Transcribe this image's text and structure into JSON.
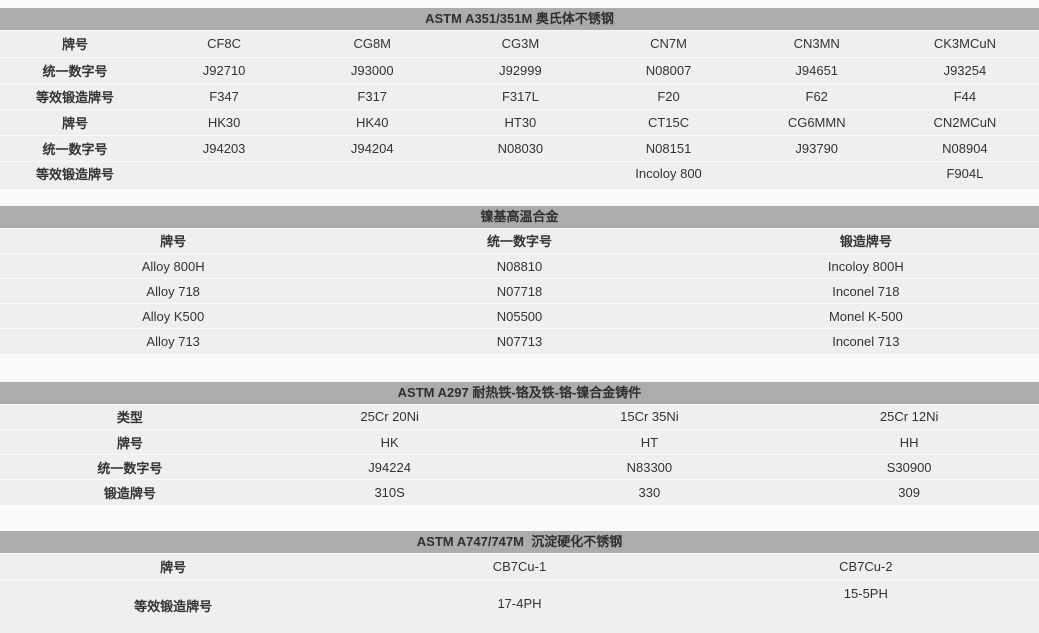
{
  "page": {
    "background_color": "#fafafa",
    "band_color": "#acacac",
    "body_color": "#efefef",
    "text_color": "#333333"
  },
  "tables": [
    {
      "title": "ASTM A351/351M 奥氏体不锈钢",
      "rows": [
        {
          "cells": [
            "牌号",
            "CF8C",
            "CG8M",
            "CG3M",
            "CN7M",
            "CN3MN",
            "CK3MCuN"
          ]
        },
        {
          "cells": [
            "统一数字号",
            "J92710",
            "J93000",
            "J92999",
            "N08007",
            "J94651",
            "J93254"
          ]
        },
        {
          "cells": [
            "等效锻造牌号",
            "F347",
            "F317",
            "F317L",
            "F20",
            "F62",
            "F44"
          ]
        },
        {
          "cells": [
            "牌号",
            "HK30",
            "HK40",
            "HT30",
            "CT15C",
            "CG6MMN",
            "CN2MCuN"
          ]
        },
        {
          "cells": [
            "统一数字号",
            "J94203",
            "J94204",
            "N08030",
            "N08151",
            "J93790",
            "N08904"
          ]
        },
        {
          "cells": [
            "等效锻造牌号",
            "",
            "",
            "",
            "Incoloy 800",
            "",
            "F904L"
          ]
        }
      ]
    },
    {
      "title": "镍基高温合金",
      "rows": [
        {
          "cells": [
            "牌号",
            "统一数字号",
            "锻造牌号"
          ],
          "bold_all": true
        },
        {
          "cells": [
            "Alloy 800H",
            "N08810",
            "Incoloy 800H"
          ]
        },
        {
          "cells": [
            "Alloy 718",
            "N07718",
            "Inconel 718"
          ]
        },
        {
          "cells": [
            "Alloy K500",
            "N05500",
            "Monel K-500"
          ]
        },
        {
          "cells": [
            "Alloy 713",
            "N07713",
            "Inconel 713"
          ]
        }
      ]
    },
    {
      "title": "ASTM A297 耐热铁-铬及铁-铬-镍合金铸件",
      "rows": [
        {
          "cells": [
            "类型",
            "25Cr 20Ni",
            "15Cr 35Ni",
            "25Cr 12Ni"
          ]
        },
        {
          "cells": [
            "牌号",
            "HK",
            "HT",
            "HH"
          ]
        },
        {
          "cells": [
            "统一数字号",
            "J94224",
            "N83300",
            "S30900"
          ]
        },
        {
          "cells": [
            "锻造牌号",
            "310S",
            "330",
            "309"
          ]
        }
      ]
    },
    {
      "title": "ASTM A747/747M  沉淀硬化不锈钢",
      "rows": [
        {
          "cells": [
            "牌号",
            "CB7Cu-1",
            "CB7Cu-2"
          ]
        },
        {
          "cells": [
            "等效锻造牌号",
            "17-4PH",
            "15-5PH"
          ]
        }
      ]
    }
  ]
}
